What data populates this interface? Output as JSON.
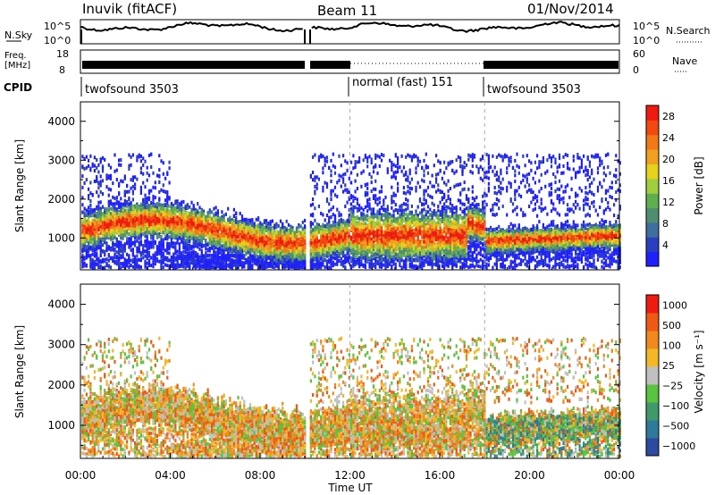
{
  "header": {
    "title": "Inuvik (fitACF)",
    "beam": "Beam 11",
    "date": "01/Nov/2014"
  },
  "noise_panel": {
    "left_label": "N.Sky",
    "right_label": "N.Search",
    "tick_top": "10^5",
    "tick_bottom": "10^0"
  },
  "freq_panel": {
    "left_label_1": "Freq.",
    "left_label_2": "[MHz]",
    "right_label": "Nave",
    "left_ticks": [
      "18",
      "8"
    ],
    "right_ticks": [
      "60",
      "0"
    ]
  },
  "cpid": {
    "label": "CPID",
    "segments": [
      {
        "start_hour": 0,
        "name": "twofsound 3503"
      },
      {
        "start_hour": 12,
        "name": "normal (fast) 151"
      },
      {
        "start_hour": 18,
        "name": "twofsound 3503"
      }
    ]
  },
  "chart_data": [
    {
      "type": "heatmap",
      "name": "power",
      "ylabel": "Slant Range [km]",
      "xlabel": "",
      "ylim": [
        180,
        4500
      ],
      "yticks": [
        1000,
        2000,
        3000,
        4000
      ],
      "colorbar": {
        "label": "Power [dB]",
        "ticks": [
          "4",
          "8",
          "12",
          "16",
          "20",
          "24",
          "28"
        ],
        "range": [
          0,
          30
        ],
        "colors": [
          "#1f1fff",
          "#2a3fbf",
          "#3f6f9f",
          "#4f8f6f",
          "#5faf4f",
          "#9fcf3f",
          "#e6d21a",
          "#f0a020",
          "#f07a18",
          "#f04a10",
          "#ee1c10"
        ]
      }
    },
    {
      "type": "heatmap",
      "name": "velocity",
      "ylabel": "Slant Range [km]",
      "xlabel": "Time UT",
      "ylim": [
        180,
        4500
      ],
      "yticks": [
        1000,
        2000,
        3000,
        4000
      ],
      "xticks": [
        "00:00",
        "04:00",
        "08:00",
        "12:00",
        "16:00",
        "20:00",
        "00:00"
      ],
      "colorbar": {
        "label": "Velocity [m s⁻¹]",
        "ticks": [
          "1000",
          "500",
          "100",
          "25",
          "−25",
          "−100",
          "−500",
          "−1000"
        ],
        "colors": [
          "#2b4aa0",
          "#2e7a9a",
          "#3f9a6a",
          "#58c440",
          "#c0c0c0",
          "#f2b826",
          "#f08a1e",
          "#ee5a16",
          "#ee1c10"
        ]
      }
    }
  ]
}
